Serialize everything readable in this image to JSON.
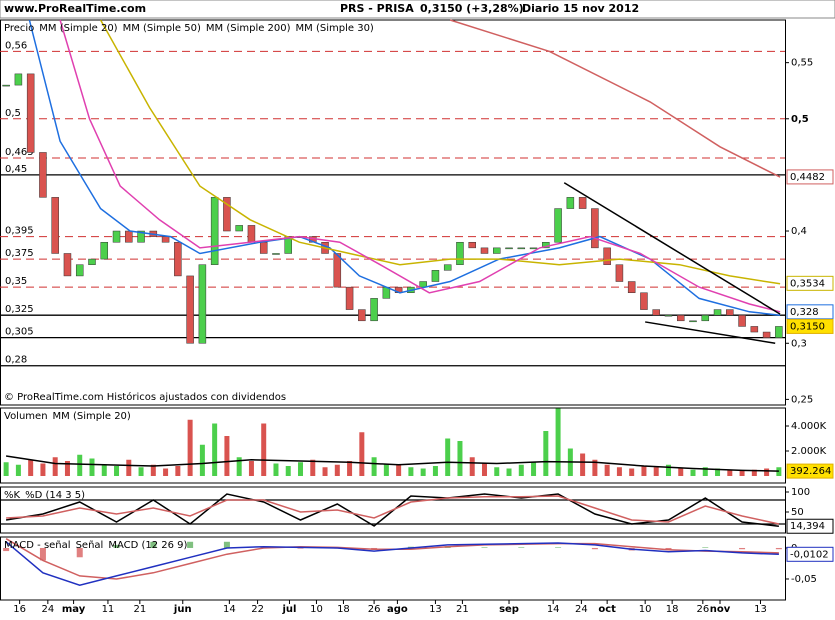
{
  "header": {
    "site": "www.ProRealTime.com",
    "symbol": "PRS - PRISA",
    "quote": "0,3150 (+3,28%)",
    "period": "Diario",
    "date": "15 nov 2012"
  },
  "chart_data": [
    {
      "type": "candlestick",
      "note": "© ProRealTime.com Históricos ajustados con dividendos",
      "xlim": [
        -0.5,
        63.5
      ],
      "ylim": [
        0.245,
        0.588
      ],
      "yticks": [
        {
          "value": 0.55,
          "label": "0,55"
        },
        {
          "value": 0.5,
          "label": "0,5"
        },
        {
          "value": 0.4,
          "label": "0,4"
        },
        {
          "value": 0.3,
          "label": "0,3"
        },
        {
          "value": 0.25,
          "label": "0,25"
        }
      ],
      "levels": [
        {
          "value": 0.56,
          "label": "0,56",
          "style": "dashed"
        },
        {
          "value": 0.5,
          "label": "0,5",
          "style": "dashed"
        },
        {
          "value": 0.465,
          "label": "0,465",
          "style": "dashed"
        },
        {
          "value": 0.45,
          "label": "0,45",
          "style": "solid"
        },
        {
          "value": 0.395,
          "label": "0,395",
          "style": "dashed"
        },
        {
          "value": 0.375,
          "label": "0,375",
          "style": "dashed"
        },
        {
          "value": 0.35,
          "label": "0,35",
          "style": "dashed"
        },
        {
          "value": 0.325,
          "label": "0,325",
          "style": "solid"
        },
        {
          "value": 0.305,
          "label": "0,305",
          "style": "solid"
        },
        {
          "value": 0.28,
          "label": "0,28",
          "style": "solid"
        }
      ],
      "series": [
        {
          "name": "Precio",
          "color": "#000000",
          "up_color": "#4ccf4c",
          "down_color": "#d9534f",
          "values": [
            0.53,
            0.54,
            0.47,
            0.43,
            0.38,
            0.36,
            0.37,
            0.375,
            0.39,
            0.4,
            0.39,
            0.4,
            0.395,
            0.39,
            0.36,
            0.3,
            0.37,
            0.43,
            0.4,
            0.405,
            0.39,
            0.38,
            0.38,
            0.395,
            0.395,
            0.39,
            0.38,
            0.35,
            0.33,
            0.32,
            0.34,
            0.35,
            0.345,
            0.35,
            0.355,
            0.365,
            0.37,
            0.39,
            0.385,
            0.38,
            0.385,
            0.385,
            0.385,
            0.385,
            0.39,
            0.42,
            0.43,
            0.42,
            0.385,
            0.37,
            0.355,
            0.345,
            0.33,
            0.325,
            0.325,
            0.32,
            0.32,
            0.325,
            0.33,
            0.325,
            0.315,
            0.31,
            0.305,
            0.315
          ]
        },
        {
          "name": "MM (Simple 20)",
          "color": "#1e6fe0",
          "x": [
            1.9,
            4.4,
            7.7,
            10.1,
            13.4,
            15.8,
            20.7,
            23.9,
            26.4,
            28.8,
            32.1,
            36.2,
            40.2,
            45.1,
            48.4,
            52.5,
            56.5,
            60.6,
            63.1
          ],
          "values": [
            0.588,
            0.48,
            0.42,
            0.4,
            0.395,
            0.38,
            0.39,
            0.395,
            0.385,
            0.36,
            0.345,
            0.355,
            0.375,
            0.385,
            0.395,
            0.375,
            0.34,
            0.328,
            0.325
          ]
        },
        {
          "name": "MM (Simple 50)",
          "color": "#c8b400",
          "x": [
            7.7,
            11.7,
            15.8,
            19.9,
            23.9,
            28.0,
            32.1,
            36.2,
            40.2,
            45.1,
            50.0,
            54.9,
            59.0,
            63.1
          ],
          "values": [
            0.588,
            0.51,
            0.44,
            0.41,
            0.39,
            0.38,
            0.37,
            0.375,
            0.375,
            0.37,
            0.375,
            0.37,
            0.36,
            0.353
          ]
        },
        {
          "name": "MM (Simple 200)",
          "color": "#d06060",
          "x": [
            36.2,
            44.3,
            52.5,
            58.2,
            63.1
          ],
          "values": [
            0.588,
            0.56,
            0.515,
            0.475,
            0.448
          ]
        },
        {
          "name": "MM (Simple 30)",
          "color": "#e040b0",
          "x": [
            4.4,
            6.8,
            9.3,
            12.5,
            15.8,
            19.9,
            23.9,
            27.2,
            30.5,
            34.5,
            38.6,
            43.5,
            47.6,
            51.7,
            56.5,
            60.6,
            63.1
          ],
          "values": [
            0.588,
            0.5,
            0.44,
            0.41,
            0.385,
            0.39,
            0.395,
            0.39,
            0.37,
            0.345,
            0.355,
            0.385,
            0.395,
            0.38,
            0.35,
            0.335,
            0.328
          ]
        }
      ],
      "trendlines": [
        {
          "x": [
            45.5,
            63.1
          ],
          "values": [
            0.443,
            0.326
          ]
        },
        {
          "x": [
            52.1,
            62.7
          ],
          "values": [
            0.319,
            0.3
          ]
        }
      ],
      "markers": [
        {
          "value": 0.4482,
          "label": "0,4482",
          "color": "#d06060"
        },
        {
          "value": 0.3534,
          "label": "0,3534",
          "color": "#c8b400"
        },
        {
          "value": 0.328,
          "label": "0,328",
          "color": "#1e6fe0"
        },
        {
          "value": 0.315,
          "label": "0,3150",
          "color": "#e0b000",
          "fill": "#ffe000"
        }
      ]
    },
    {
      "type": "volume",
      "xlim": [
        -0.5,
        63.5
      ],
      "ylim": [
        -560,
        5440
      ],
      "yticks": [
        {
          "value": 4000,
          "label": "4.000K"
        },
        {
          "value": 2000,
          "label": "2.000K"
        }
      ],
      "series": [
        {
          "name": "Volumen",
          "color": "#4ccf4c",
          "up_color": "#4ccf4c",
          "down_color": "#d9534f",
          "values": [
            1100,
            900,
            1300,
            1000,
            1500,
            1200,
            1700,
            1400,
            900,
            800,
            1300,
            700,
            900,
            600,
            800,
            4500,
            2500,
            4200,
            3200,
            1500,
            1200,
            4200,
            1000,
            800,
            1100,
            1300,
            700,
            900,
            1200,
            3500,
            1500,
            1000,
            900,
            700,
            600,
            800,
            3000,
            2800,
            1500,
            1000,
            700,
            600,
            900,
            1100,
            3600,
            5400,
            2200,
            1800,
            1300,
            900,
            700,
            600,
            800,
            700,
            900,
            600,
            500,
            700,
            600,
            500,
            400,
            500,
            600,
            700
          ]
        },
        {
          "name": "MM (Simple 20)",
          "color": "#000000",
          "x": [
            0,
            4,
            8,
            12,
            16,
            20,
            24,
            28,
            32,
            36,
            40,
            44,
            48,
            52,
            56,
            60,
            63
          ],
          "values": [
            1600,
            1000,
            900,
            800,
            1000,
            1300,
            1200,
            1100,
            900,
            1100,
            1000,
            1150,
            1100,
            800,
            600,
            450,
            392.264
          ]
        }
      ],
      "markers": [
        {
          "value": 392.264,
          "label": "392.264",
          "color": "#e0b000",
          "fill": "#ffe000"
        }
      ]
    },
    {
      "type": "line",
      "xlim": [
        -0.5,
        63.5
      ],
      "ylim": [
        -2.5,
        112.5
      ],
      "yticks": [
        100,
        50
      ],
      "levels": [
        {
          "value": 80,
          "style": "solid"
        },
        {
          "value": 20,
          "style": "solid"
        }
      ],
      "series": [
        {
          "name": "%K",
          "color": "#000000",
          "x": [
            0,
            3,
            6,
            9,
            12,
            15,
            18,
            21,
            24,
            27,
            30,
            33,
            36,
            39,
            42,
            45,
            48,
            51,
            54,
            57,
            60,
            63
          ],
          "values": [
            30,
            45,
            75,
            25,
            80,
            20,
            95,
            75,
            30,
            70,
            15,
            90,
            85,
            95,
            85,
            95,
            45,
            20,
            30,
            85,
            25,
            14.394
          ]
        },
        {
          "name": "%D (14 3 5)",
          "color": "#d06060",
          "x": [
            0,
            3,
            6,
            9,
            12,
            15,
            18,
            21,
            24,
            27,
            30,
            33,
            36,
            39,
            42,
            45,
            48,
            51,
            54,
            57,
            60,
            63
          ],
          "values": [
            35,
            40,
            60,
            45,
            60,
            40,
            80,
            80,
            50,
            55,
            35,
            75,
            85,
            88,
            88,
            90,
            60,
            30,
            25,
            65,
            40,
            20
          ]
        }
      ],
      "markers": [
        {
          "value": 14.394,
          "label": "14,394",
          "color": "#000000",
          "fill": "#ffffff"
        }
      ]
    },
    {
      "type": "macd",
      "xlim": [
        -0.5,
        63.5
      ],
      "ylim": [
        -0.0839,
        0.0177
      ],
      "yticks": [
        0,
        {
          "value": -0.05,
          "label": "-0,05"
        }
      ],
      "xticks": [
        {
          "value": 1.1,
          "label": "16"
        },
        {
          "value": 3.4,
          "label": "24"
        },
        {
          "value": 5.5,
          "label": "may"
        },
        {
          "value": 8.3,
          "label": "11"
        },
        {
          "value": 10.9,
          "label": "21"
        },
        {
          "value": 14.4,
          "label": "jun"
        },
        {
          "value": 18.2,
          "label": "14"
        },
        {
          "value": 20.5,
          "label": "22"
        },
        {
          "value": 23.1,
          "label": "jul"
        },
        {
          "value": 25.3,
          "label": "10"
        },
        {
          "value": 27.5,
          "label": "18"
        },
        {
          "value": 30.0,
          "label": "26"
        },
        {
          "value": 31.9,
          "label": "ago"
        },
        {
          "value": 35.0,
          "label": "13"
        },
        {
          "value": 37.2,
          "label": "21"
        },
        {
          "value": 41.0,
          "label": "sep"
        },
        {
          "value": 44.6,
          "label": "14"
        },
        {
          "value": 46.9,
          "label": "24"
        },
        {
          "value": 49.0,
          "label": "oct"
        },
        {
          "value": 52.1,
          "label": "10"
        },
        {
          "value": 54.3,
          "label": "18"
        },
        {
          "value": 56.8,
          "label": "26"
        },
        {
          "value": 58.2,
          "label": "nov"
        },
        {
          "value": 61.5,
          "label": "13"
        }
      ],
      "series": [
        {
          "name": "MACD - señal",
          "color": "#80c080",
          "kind": "bar",
          "x": [
            0,
            3,
            6,
            9,
            12,
            15,
            18,
            21,
            24,
            27,
            30,
            33,
            36,
            39,
            42,
            45,
            48,
            51,
            54,
            57,
            60,
            63
          ],
          "values": [
            -0.005,
            -0.02,
            -0.015,
            0.005,
            0.01,
            0.01,
            0.01,
            0.002,
            -0.001,
            -0.001,
            -0.003,
            0.002,
            0.003,
            0.001,
            0.001,
            0.001,
            -0.002,
            -0.004,
            -0.003,
            0.001,
            -0.002,
            -0.002
          ]
        },
        {
          "name": "Señal",
          "color": "#d06060",
          "x": [
            0,
            3,
            6,
            9,
            12,
            15,
            18,
            21,
            24,
            27,
            30,
            33,
            36,
            39,
            42,
            45,
            48,
            51,
            54,
            57,
            60,
            63
          ],
          "values": [
            0.015,
            -0.02,
            -0.045,
            -0.05,
            -0.04,
            -0.025,
            -0.01,
            0.0,
            0.002,
            0.001,
            -0.002,
            -0.002,
            0.002,
            0.005,
            0.006,
            0.007,
            0.007,
            0.002,
            -0.003,
            -0.005,
            -0.006,
            -0.008
          ]
        },
        {
          "name": "MACD (12 26 9)",
          "color": "#2030c0",
          "x": [
            0,
            3,
            6,
            9,
            12,
            15,
            18,
            21,
            24,
            27,
            30,
            33,
            36,
            39,
            42,
            45,
            48,
            51,
            54,
            57,
            60,
            63
          ],
          "values": [
            0.01,
            -0.04,
            -0.06,
            -0.045,
            -0.03,
            -0.015,
            0.0,
            0.002,
            0.001,
            0.0,
            -0.005,
            0.0,
            0.005,
            0.006,
            0.007,
            0.008,
            0.005,
            -0.002,
            -0.006,
            -0.004,
            -0.008,
            -0.0102
          ]
        }
      ],
      "markers": [
        {
          "value": -0.0102,
          "label": "-0,0102",
          "color": "#2030c0",
          "fill": "#ffffff"
        }
      ]
    }
  ]
}
